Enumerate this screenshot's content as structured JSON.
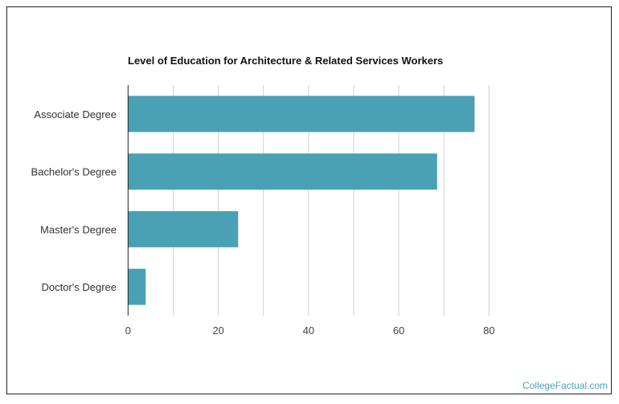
{
  "chart_data": {
    "type": "bar",
    "orientation": "horizontal",
    "title": "Level of Education for Architecture & Related Services Workers",
    "categories": [
      "Associate Degree",
      "Bachelor's Degree",
      "Master's Degree",
      "Doctor's Degree"
    ],
    "values": [
      76.8,
      68.5,
      24.4,
      3.9
    ],
    "xlabel": "",
    "ylabel": "",
    "xlim": [
      0,
      80
    ],
    "xticks": [
      "0",
      "20",
      "40",
      "60",
      "80"
    ],
    "grid": true,
    "bar_color": "#4aa0b5"
  },
  "footer": {
    "source_link": "CollegeFactual.com"
  }
}
